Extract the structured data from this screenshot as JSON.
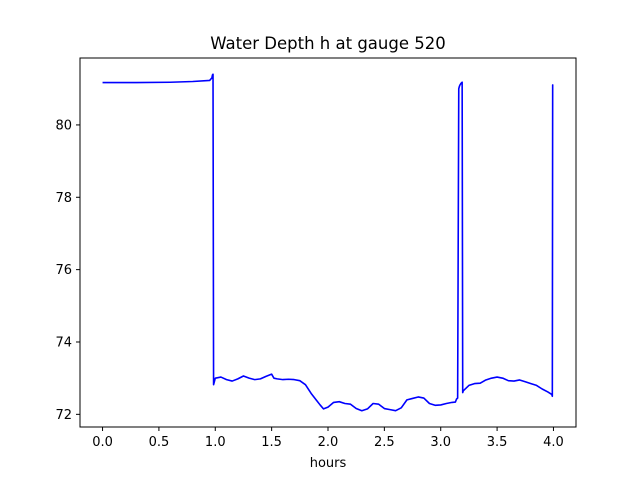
{
  "chart_data": {
    "type": "line",
    "title": "Water Depth h at gauge 520",
    "xlabel": "hours",
    "ylabel": "",
    "xlim": [
      -0.2,
      4.2
    ],
    "ylim": [
      71.65,
      81.85
    ],
    "x_ticks": [
      0.0,
      0.5,
      1.0,
      1.5,
      2.0,
      2.5,
      3.0,
      3.5,
      4.0
    ],
    "x_tick_labels": [
      "0.0",
      "0.5",
      "1.0",
      "1.5",
      "2.0",
      "2.5",
      "3.0",
      "3.5",
      "4.0"
    ],
    "y_ticks": [
      72,
      74,
      76,
      78,
      80
    ],
    "y_tick_labels": [
      "72",
      "74",
      "76",
      "78",
      "80"
    ],
    "grid": false,
    "legend": "none",
    "series": [
      {
        "color": "#0000ff",
        "x": [
          0.0,
          0.3,
          0.6,
          0.8,
          0.95,
          0.97,
          0.975,
          0.98,
          0.985,
          1.0,
          1.05,
          1.1,
          1.15,
          1.2,
          1.25,
          1.3,
          1.35,
          1.4,
          1.45,
          1.5,
          1.52,
          1.55,
          1.6,
          1.65,
          1.7,
          1.75,
          1.8,
          1.85,
          1.9,
          1.93,
          1.96,
          2.0,
          2.05,
          2.1,
          2.15,
          2.2,
          2.25,
          2.3,
          2.35,
          2.4,
          2.45,
          2.5,
          2.55,
          2.6,
          2.65,
          2.7,
          2.75,
          2.8,
          2.85,
          2.9,
          2.95,
          3.0,
          3.05,
          3.1,
          3.13,
          3.14,
          3.15,
          3.16,
          3.165,
          3.17,
          3.18,
          3.19,
          3.195,
          3.2,
          3.25,
          3.3,
          3.35,
          3.4,
          3.45,
          3.5,
          3.55,
          3.6,
          3.65,
          3.7,
          3.75,
          3.8,
          3.85,
          3.9,
          3.95,
          3.985,
          3.99,
          3.993,
          3.995
        ],
        "y": [
          81.17,
          81.17,
          81.18,
          81.2,
          81.23,
          81.3,
          81.38,
          81.4,
          72.82,
          73.0,
          73.03,
          72.96,
          72.92,
          72.98,
          73.06,
          73.0,
          72.96,
          72.98,
          73.05,
          73.11,
          73.0,
          72.98,
          72.96,
          72.97,
          72.96,
          72.93,
          72.82,
          72.58,
          72.38,
          72.26,
          72.15,
          72.2,
          72.33,
          72.35,
          72.3,
          72.28,
          72.16,
          72.1,
          72.15,
          72.3,
          72.28,
          72.16,
          72.13,
          72.1,
          72.18,
          72.4,
          72.44,
          72.48,
          72.45,
          72.3,
          72.25,
          72.26,
          72.3,
          72.33,
          72.34,
          72.42,
          72.45,
          81.0,
          81.06,
          81.1,
          81.15,
          81.18,
          72.6,
          72.65,
          72.8,
          72.85,
          72.86,
          72.95,
          73.0,
          73.03,
          73.0,
          72.93,
          72.92,
          72.95,
          72.9,
          72.85,
          72.8,
          72.7,
          72.62,
          72.55,
          72.5,
          81.1,
          81.12
        ]
      }
    ]
  }
}
